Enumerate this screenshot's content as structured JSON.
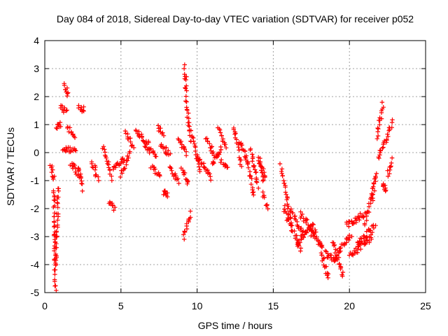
{
  "chart_data": {
    "type": "scatter",
    "title": "Day 084 of 2018, Sidereal Day-to-day VTEC variation (SDTVAR) for receiver p052",
    "xlabel": "GPS time / hours",
    "ylabel": "SDTVAR / TECUs",
    "xlim": [
      0,
      25
    ],
    "ylim": [
      -5,
      4
    ],
    "xticks": [
      "0",
      "5",
      "10",
      "15",
      "20",
      "25"
    ],
    "yticks": [
      "-5",
      "-4",
      "-3",
      "-2",
      "-1",
      "0",
      "1",
      "2",
      "3",
      "4"
    ],
    "grid": true,
    "marker": "+",
    "color": "#ff0000",
    "segments": [
      {
        "x0": 0.4,
        "x1": 0.6,
        "y0": -0.5,
        "y1": -0.9
      },
      {
        "x0": 0.6,
        "x1": 0.7,
        "y0": -1.3,
        "y1": -4.9
      },
      {
        "x0": 0.7,
        "x1": 0.9,
        "y0": -4.0,
        "y1": -1.2
      },
      {
        "x0": 0.8,
        "x1": 1.0,
        "y0": 0.9,
        "y1": 1.0
      },
      {
        "x0": 1.0,
        "x1": 1.4,
        "y0": 1.6,
        "y1": 1.5
      },
      {
        "x0": 1.3,
        "x1": 1.5,
        "y0": 2.4,
        "y1": 2.1
      },
      {
        "x0": 1.2,
        "x1": 2.0,
        "y0": 0.1,
        "y1": 0.1
      },
      {
        "x0": 1.5,
        "x1": 2.0,
        "y0": 0.9,
        "y1": 0.6
      },
      {
        "x0": 1.7,
        "x1": 2.3,
        "y0": -0.4,
        "y1": -0.8
      },
      {
        "x0": 2.2,
        "x1": 2.6,
        "y0": 1.6,
        "y1": 1.5
      },
      {
        "x0": 2.2,
        "x1": 2.5,
        "y0": -0.5,
        "y1": -1.3
      },
      {
        "x0": 3.1,
        "x1": 3.5,
        "y0": -0.3,
        "y1": -1.0
      },
      {
        "x0": 3.8,
        "x1": 4.4,
        "y0": 0.2,
        "y1": -0.9
      },
      {
        "x0": 4.2,
        "x1": 4.6,
        "y0": -1.8,
        "y1": -2.0
      },
      {
        "x0": 4.5,
        "x1": 5.2,
        "y0": -0.6,
        "y1": -0.2
      },
      {
        "x0": 5.0,
        "x1": 5.6,
        "y0": -0.8,
        "y1": 0.0
      },
      {
        "x0": 5.3,
        "x1": 5.8,
        "y0": 0.7,
        "y1": 0.2
      },
      {
        "x0": 6.0,
        "x1": 6.8,
        "y0": 0.8,
        "y1": 0.3
      },
      {
        "x0": 6.6,
        "x1": 7.3,
        "y0": 0.2,
        "y1": -0.1
      },
      {
        "x0": 7.0,
        "x1": 7.6,
        "y0": -0.5,
        "y1": -0.8
      },
      {
        "x0": 7.4,
        "x1": 7.8,
        "y0": 0.9,
        "y1": 0.7
      },
      {
        "x0": 7.6,
        "x1": 8.2,
        "y0": 0.2,
        "y1": 0.0
      },
      {
        "x0": 7.8,
        "x1": 8.1,
        "y0": -1.4,
        "y1": -1.5
      },
      {
        "x0": 8.2,
        "x1": 8.8,
        "y0": -0.6,
        "y1": -1.0
      },
      {
        "x0": 8.8,
        "x1": 9.3,
        "y0": 0.4,
        "y1": 0.0
      },
      {
        "x0": 9.0,
        "x1": 9.4,
        "y0": -0.5,
        "y1": -1.1
      },
      {
        "x0": 9.2,
        "x1": 9.3,
        "y0": 3.1,
        "y1": 1.9
      },
      {
        "x0": 9.3,
        "x1": 9.6,
        "y0": 1.8,
        "y1": 0.4
      },
      {
        "x0": 9.1,
        "x1": 9.6,
        "y0": -3.0,
        "y1": -2.2
      },
      {
        "x0": 9.6,
        "x1": 10.2,
        "y0": 0.8,
        "y1": -0.6
      },
      {
        "x0": 10.0,
        "x1": 10.9,
        "y0": -0.2,
        "y1": -0.9
      },
      {
        "x0": 10.6,
        "x1": 11.1,
        "y0": 0.5,
        "y1": 0.0
      },
      {
        "x0": 11.0,
        "x1": 11.6,
        "y0": -0.4,
        "y1": 0.1
      },
      {
        "x0": 11.4,
        "x1": 11.9,
        "y0": 0.8,
        "y1": 0.2
      },
      {
        "x0": 11.6,
        "x1": 12.0,
        "y0": -0.3,
        "y1": -0.5
      },
      {
        "x0": 12.4,
        "x1": 12.9,
        "y0": 0.9,
        "y1": -0.4
      },
      {
        "x0": 12.8,
        "x1": 13.2,
        "y0": 0.4,
        "y1": -0.2
      },
      {
        "x0": 13.2,
        "x1": 13.7,
        "y0": 0.0,
        "y1": -1.5
      },
      {
        "x0": 13.5,
        "x1": 14.0,
        "y0": 0.1,
        "y1": -1.2
      },
      {
        "x0": 14.0,
        "x1": 14.4,
        "y0": -0.2,
        "y1": -1.0
      },
      {
        "x0": 14.3,
        "x1": 14.6,
        "y0": -1.4,
        "y1": -2.0
      },
      {
        "x0": 14.1,
        "x1": 14.5,
        "y0": -0.3,
        "y1": -0.9
      },
      {
        "x0": 15.5,
        "x1": 16.2,
        "y0": -0.5,
        "y1": -2.6
      },
      {
        "x0": 15.7,
        "x1": 16.8,
        "y0": -2.0,
        "y1": -3.5
      },
      {
        "x0": 16.1,
        "x1": 17.0,
        "y0": -2.0,
        "y1": -3.0
      },
      {
        "x0": 16.6,
        "x1": 17.6,
        "y0": -3.2,
        "y1": -2.6
      },
      {
        "x0": 16.8,
        "x1": 17.8,
        "y0": -2.2,
        "y1": -2.9
      },
      {
        "x0": 17.4,
        "x1": 18.2,
        "y0": -2.8,
        "y1": -3.4
      },
      {
        "x0": 18.0,
        "x1": 18.6,
        "y0": -3.2,
        "y1": -4.5
      },
      {
        "x0": 18.4,
        "x1": 19.2,
        "y0": -3.6,
        "y1": -3.9
      },
      {
        "x0": 18.9,
        "x1": 19.6,
        "y0": -3.2,
        "y1": -4.4
      },
      {
        "x0": 19.2,
        "x1": 20.1,
        "y0": -3.6,
        "y1": -3.0
      },
      {
        "x0": 19.8,
        "x1": 21.0,
        "y0": -2.6,
        "y1": -2.2
      },
      {
        "x0": 20.0,
        "x1": 21.5,
        "y0": -3.7,
        "y1": -3.0
      },
      {
        "x0": 20.5,
        "x1": 21.7,
        "y0": -3.3,
        "y1": -2.6
      },
      {
        "x0": 21.0,
        "x1": 21.6,
        "y0": -2.5,
        "y1": -1.4
      },
      {
        "x0": 21.4,
        "x1": 21.8,
        "y0": -1.6,
        "y1": -0.7
      },
      {
        "x0": 21.8,
        "x1": 22.2,
        "y0": 0.6,
        "y1": 1.7
      },
      {
        "x0": 21.9,
        "x1": 22.3,
        "y0": -0.2,
        "y1": 0.4
      },
      {
        "x0": 22.4,
        "x1": 22.8,
        "y0": 0.4,
        "y1": 1.1
      },
      {
        "x0": 22.5,
        "x1": 22.8,
        "y0": -0.8,
        "y1": -0.3
      },
      {
        "x0": 22.2,
        "x1": 22.4,
        "y0": -1.2,
        "y1": -1.3
      }
    ]
  }
}
